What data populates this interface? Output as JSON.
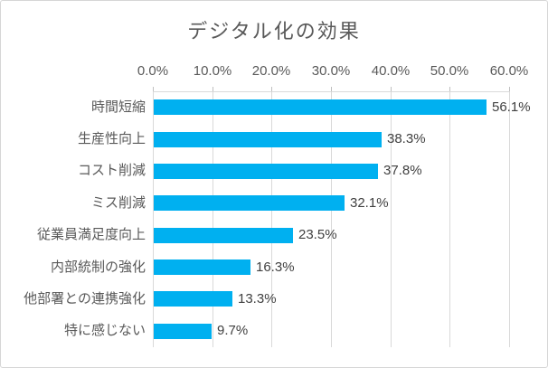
{
  "chart_data": {
    "type": "bar",
    "orientation": "horizontal",
    "title": "デジタル化の効果",
    "categories": [
      "時間短縮",
      "生産性向上",
      "コスト削減",
      "ミス削減",
      "従業員満足度向上",
      "内部統制の強化",
      "他部署との連携強化",
      "特に感じない"
    ],
    "values": [
      56.1,
      38.3,
      37.8,
      32.1,
      23.5,
      16.3,
      13.3,
      9.7
    ],
    "data_labels": [
      "56.1%",
      "38.3%",
      "37.8%",
      "32.1%",
      "23.5%",
      "16.3%",
      "13.3%",
      "9.7%"
    ],
    "x_tick_labels": [
      "0.0%",
      "10.0%",
      "20.0%",
      "30.0%",
      "40.0%",
      "50.0%",
      "60.0%"
    ],
    "x_tick_values": [
      0,
      10,
      20,
      30,
      40,
      50,
      60
    ],
    "xlim": [
      0,
      60
    ],
    "axis_position": "top",
    "grid": true,
    "legend": "none",
    "colors": {
      "bar": "#00b0f0",
      "gridline": "#d9d9d9",
      "title_text": "#595959",
      "axis_text": "#595959",
      "data_label_text": "#404040",
      "chart_border": "#d6d6d6",
      "background": "#ffffff"
    }
  }
}
